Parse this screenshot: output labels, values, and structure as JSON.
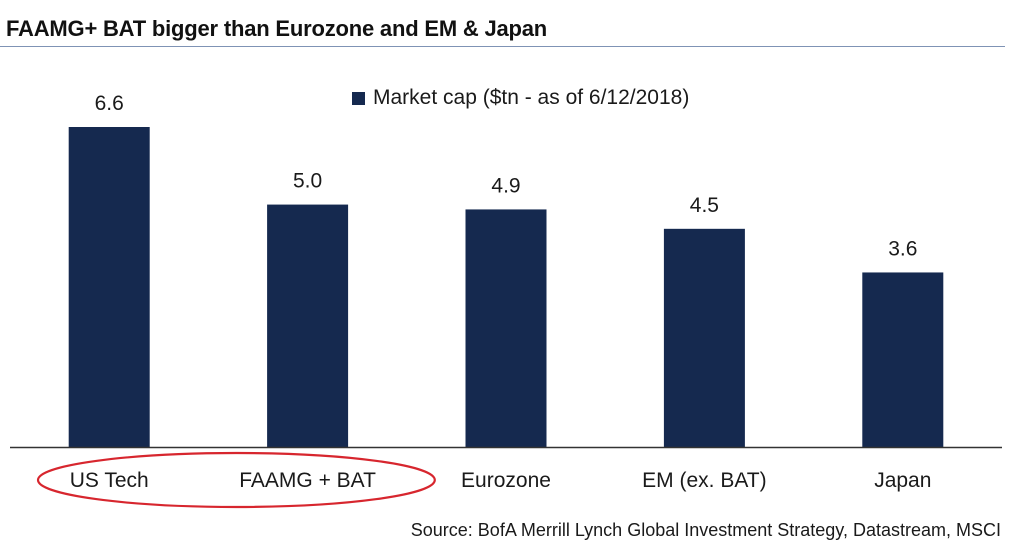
{
  "title": "FAAMG+ BAT bigger than Eurozone and EM & Japan",
  "source": "Source: BofA Merrill Lynch Global Investment Strategy, Datastream, MSCI",
  "colors": {
    "bar": "#15294f",
    "axis": "#333333",
    "rule": "#7f93b5",
    "highlight": "#d7262e"
  },
  "chart_data": {
    "type": "bar",
    "categories": [
      "US Tech",
      "FAAMG + BAT",
      "Eurozone",
      "EM (ex. BAT)",
      "Japan"
    ],
    "series": [
      {
        "name": "Market cap ($tn - as of 6/12/2018)",
        "values": [
          6.6,
          5.0,
          4.9,
          4.5,
          3.6
        ],
        "value_labels": [
          "6.6",
          "5.0",
          "4.9",
          "4.5",
          "3.6"
        ]
      }
    ],
    "ylim": [
      0,
      6.6
    ],
    "grid": false,
    "legend": "top-center",
    "highlighted_categories": [
      "US Tech",
      "FAAMG + BAT"
    ]
  }
}
